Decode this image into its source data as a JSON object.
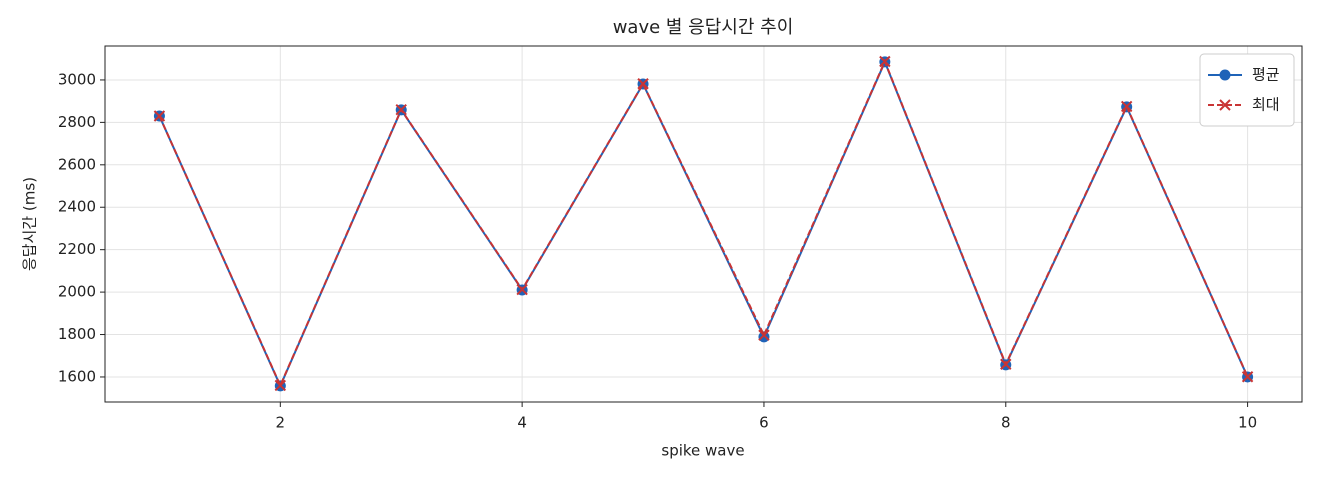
{
  "chart_data": {
    "type": "line",
    "title": "wave 별 응답시간 추이",
    "x_label": "spike wave",
    "y_label": "응답시간 (ms)",
    "x": [
      1,
      2,
      3,
      4,
      5,
      6,
      7,
      8,
      9,
      10
    ],
    "series": [
      {
        "name": "평균",
        "color": "#1f63b8",
        "marker": "o",
        "linestyle": "solid",
        "values": [
          2830,
          1558,
          2859,
          2010,
          2981,
          1789,
          3085,
          1657,
          2873,
          1600
        ]
      },
      {
        "name": "최대",
        "color": "#c93434",
        "marker": "x",
        "linestyle": "dashed",
        "values": [
          2830,
          1560,
          2860,
          2012,
          2982,
          1797,
          3087,
          1660,
          2875,
          1601
        ]
      }
    ],
    "xlim": [
      0.55,
      10.45
    ],
    "xticks": [
      2,
      4,
      6,
      8,
      10
    ],
    "ylim": [
      1482,
      3160
    ],
    "yticks": [
      1600,
      1800,
      2000,
      2200,
      2400,
      2600,
      2800,
      3000
    ],
    "grid": true,
    "legend": "upper right"
  }
}
